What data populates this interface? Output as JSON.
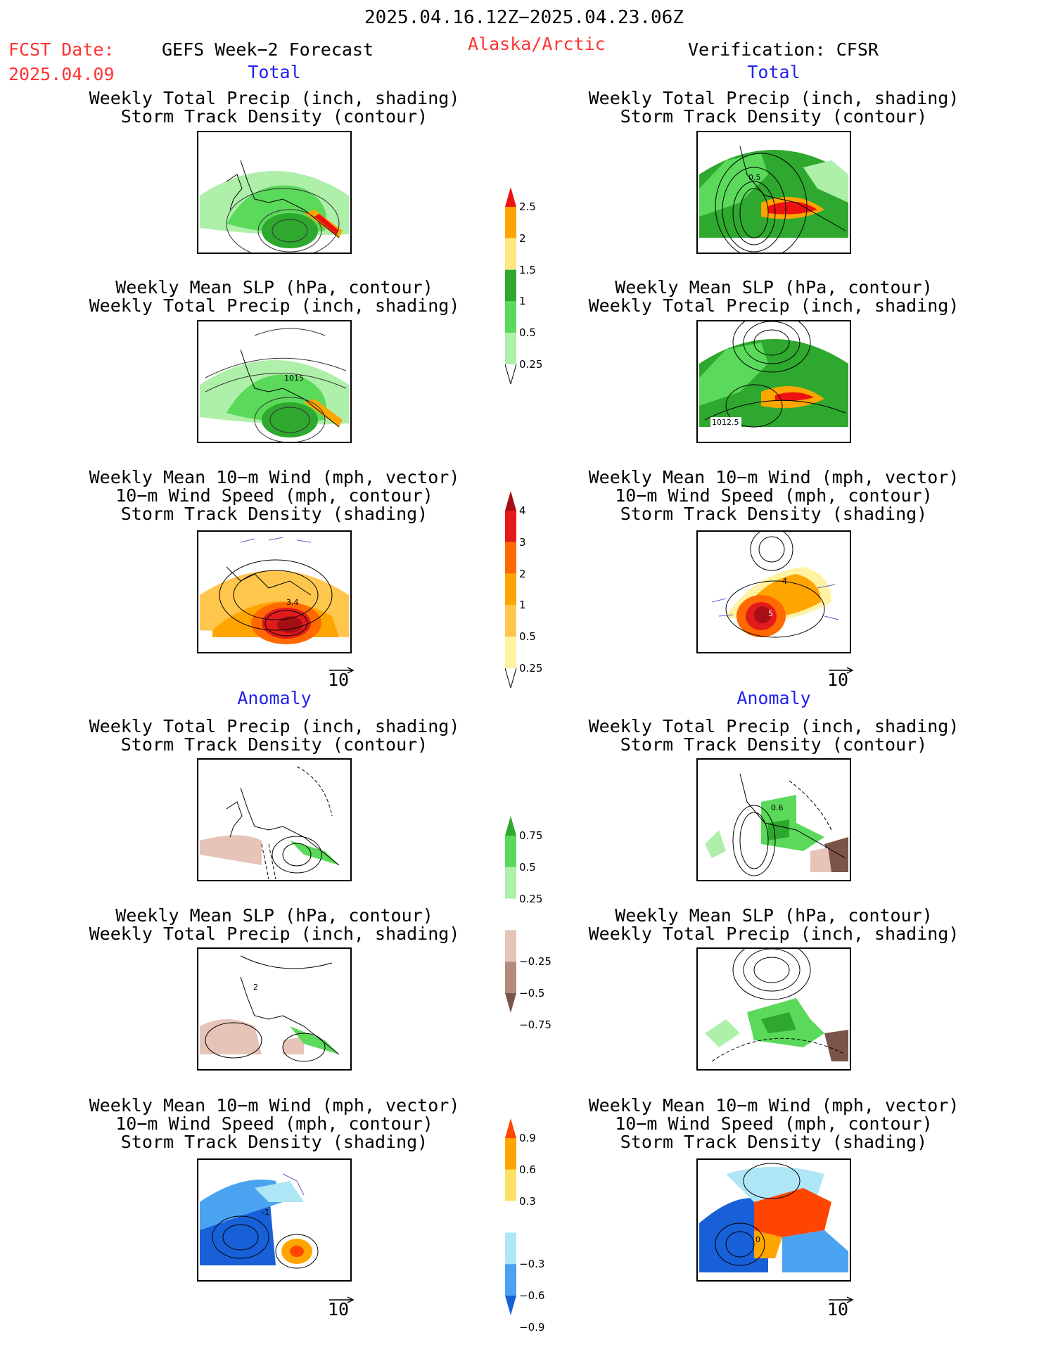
{
  "header": {
    "date_range": "2025.04.16.12Z−2025.04.23.06Z",
    "fcst_label": "FCST Date:",
    "fcst_date": "2025.04.09",
    "model": "GEFS Week−2 Forecast",
    "region": "Alaska/Arctic",
    "verification": "Verification: CFSR"
  },
  "sections": {
    "total_left": "Total",
    "total_right": "Total",
    "anomaly_left": "Anomaly",
    "anomaly_right": "Anomaly"
  },
  "panels": {
    "precip_track": {
      "line1": "Weekly Total Precip (inch, shading)",
      "line2": "Storm Track Density (contour)"
    },
    "slp_precip": {
      "line1": "Weekly Mean SLP (hPa, contour)",
      "line2": "Weekly Total Precip (inch, shading)"
    },
    "wind": {
      "line1": "Weekly Mean 10−m Wind (mph, vector)",
      "line2": "10−m Wind Speed (mph, contour)",
      "line3": "Storm Track Density (shading)"
    }
  },
  "map_labels": {
    "fcst_slp_total": "1015",
    "cfsr_precip_total": "0.5",
    "cfsr_slp_total": "1012.5",
    "fcst_wind_total": "3.4",
    "cfsr_wind_total_a": "4",
    "cfsr_wind_total_b": "5",
    "cfsr_precip_anom": "0.6",
    "fcst_slp_anom": "2",
    "fcst_wind_anom": "-1",
    "cfsr_wind_anom": "0"
  },
  "vector_ref": "10",
  "colorbars": {
    "precip_total": {
      "labels": [
        "2.5",
        "2",
        "1.5",
        "1",
        "0.5",
        "0.25"
      ],
      "colors": [
        "#ee1111",
        "#ffa500",
        "#ffe680",
        "#2ea82e",
        "#5ad95a",
        "#aef0aa"
      ]
    },
    "track_total": {
      "labels": [
        "4",
        "3",
        "2",
        "1",
        "0.5",
        "0.25"
      ],
      "colors": [
        "#a50f15",
        "#e31a1c",
        "#ff6a00",
        "#ffa500",
        "#ffc64d",
        "#fff2a0"
      ]
    },
    "precip_anom": {
      "labels": [
        "0.75",
        "0.5",
        "0.25",
        "−0.25",
        "−0.5",
        "−0.75"
      ],
      "colors": [
        "#2ea82e",
        "#5ad95a",
        "#aef0aa",
        "#ffffff",
        "#e6c4b8",
        "#b38a7c",
        "#7a5448"
      ]
    },
    "track_anom": {
      "labels": [
        "0.9",
        "0.6",
        "0.3",
        "−0.3",
        "−0.6",
        "−0.9"
      ],
      "colors": [
        "#ff4500",
        "#ffa500",
        "#ffe066",
        "#ffffff",
        "#aee6f5",
        "#4aa3f0",
        "#1860d8"
      ]
    }
  },
  "colors": {
    "red_text": "#ff3333",
    "blue_text": "#2222ee",
    "vector": "#6a5acd"
  }
}
